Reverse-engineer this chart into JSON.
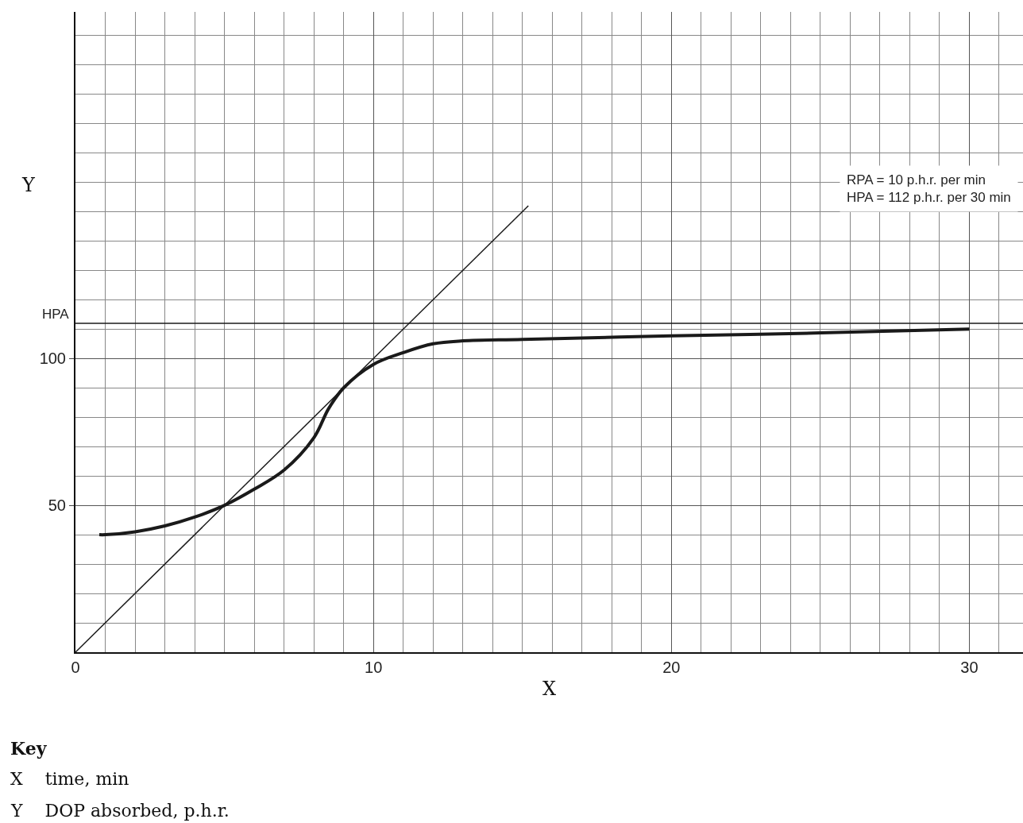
{
  "chart_data": {
    "type": "line",
    "xlabel": "X",
    "ylabel": "Y",
    "xlim": [
      0,
      31.8
    ],
    "ylim": [
      0,
      218
    ],
    "xticks": [
      0,
      10,
      20,
      30
    ],
    "yticks": [
      50,
      100
    ],
    "grid": true,
    "series": [
      {
        "color": "#1a1a1a",
        "x": [
          0.8,
          1,
          2,
          3,
          4,
          5,
          6,
          7,
          8,
          8.5,
          9,
          10,
          11,
          12,
          13,
          15,
          20,
          25,
          30
        ],
        "values": [
          40,
          40,
          41,
          43,
          46,
          50,
          55.5,
          62,
          73,
          83,
          90,
          98,
          102,
          105,
          106,
          106.5,
          107.7,
          108.7,
          110
        ]
      },
      {
        "type": "line",
        "color": "#1a1a1a",
        "x": [
          0,
          15.2
        ],
        "values": [
          0,
          152
        ]
      }
    ],
    "ref_lines": [
      {
        "axis": "y",
        "value": 112,
        "label": "HPA",
        "color": "#1a1a1a"
      }
    ],
    "annotations": [
      "RPA = 10 p.h.r. per min",
      "HPA = 112 p.h.r. per 30 min",
      "Key",
      "X    time, min",
      "Y    DOP absorbed, p.h.r."
    ]
  }
}
